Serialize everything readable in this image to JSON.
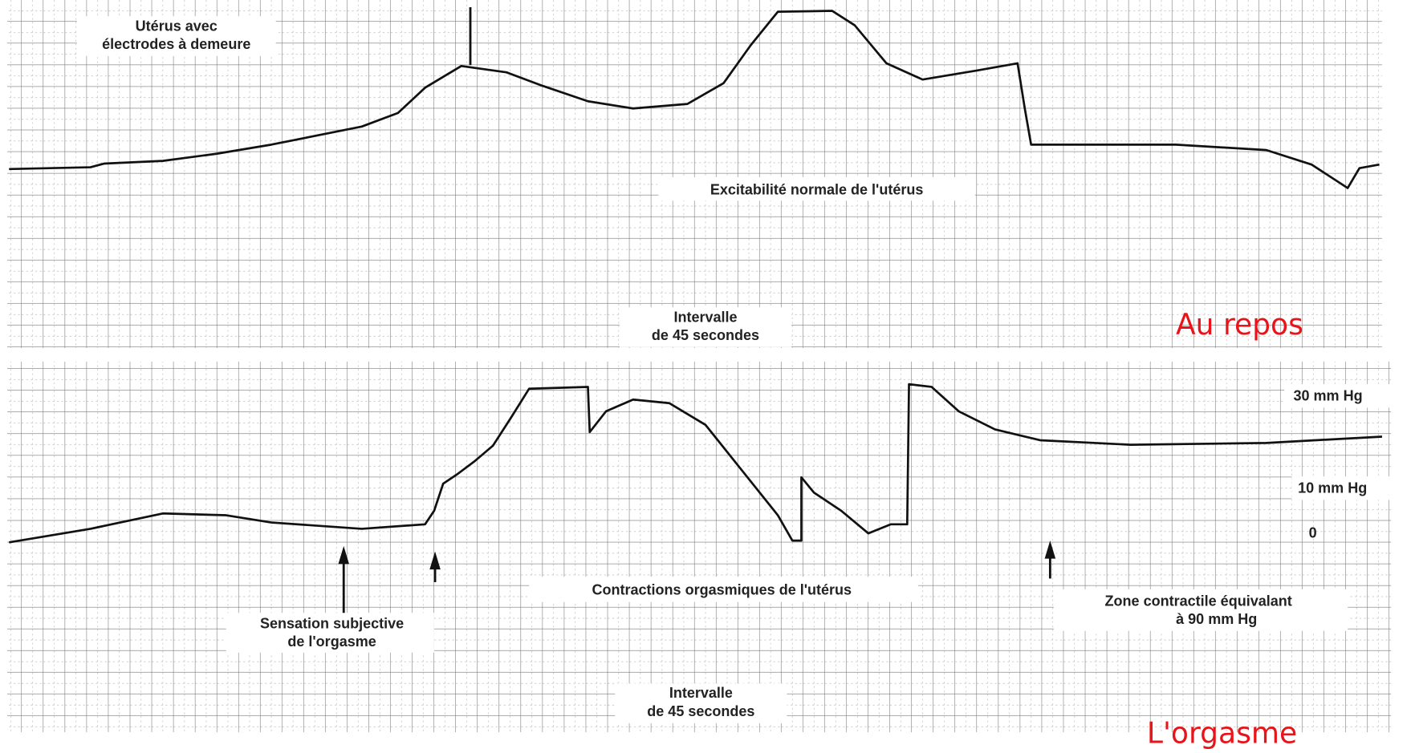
{
  "top_panel": {
    "electrode_note": [
      "Utérus avec",
      "électrodes à demeure"
    ],
    "trace_label": "Excitabilité normale de l'utérus",
    "interval_note": [
      "Intervalle",
      "de 45 secondes"
    ],
    "caption": "Au repos"
  },
  "bottom_panel": {
    "pressure_labels": [
      "30 mm Hg",
      "10 mm Hg",
      "0"
    ],
    "sensation_note": [
      "Sensation subjective",
      "de l'orgasme"
    ],
    "trace_label": "Contractions orgasmiques de l'utérus",
    "zone_note": [
      "Zone contractile équivalant",
      "à 90 mm Hg"
    ],
    "interval_note": [
      "Intervalle",
      "de 45 secondes"
    ],
    "caption": "L'orgasme"
  }
}
